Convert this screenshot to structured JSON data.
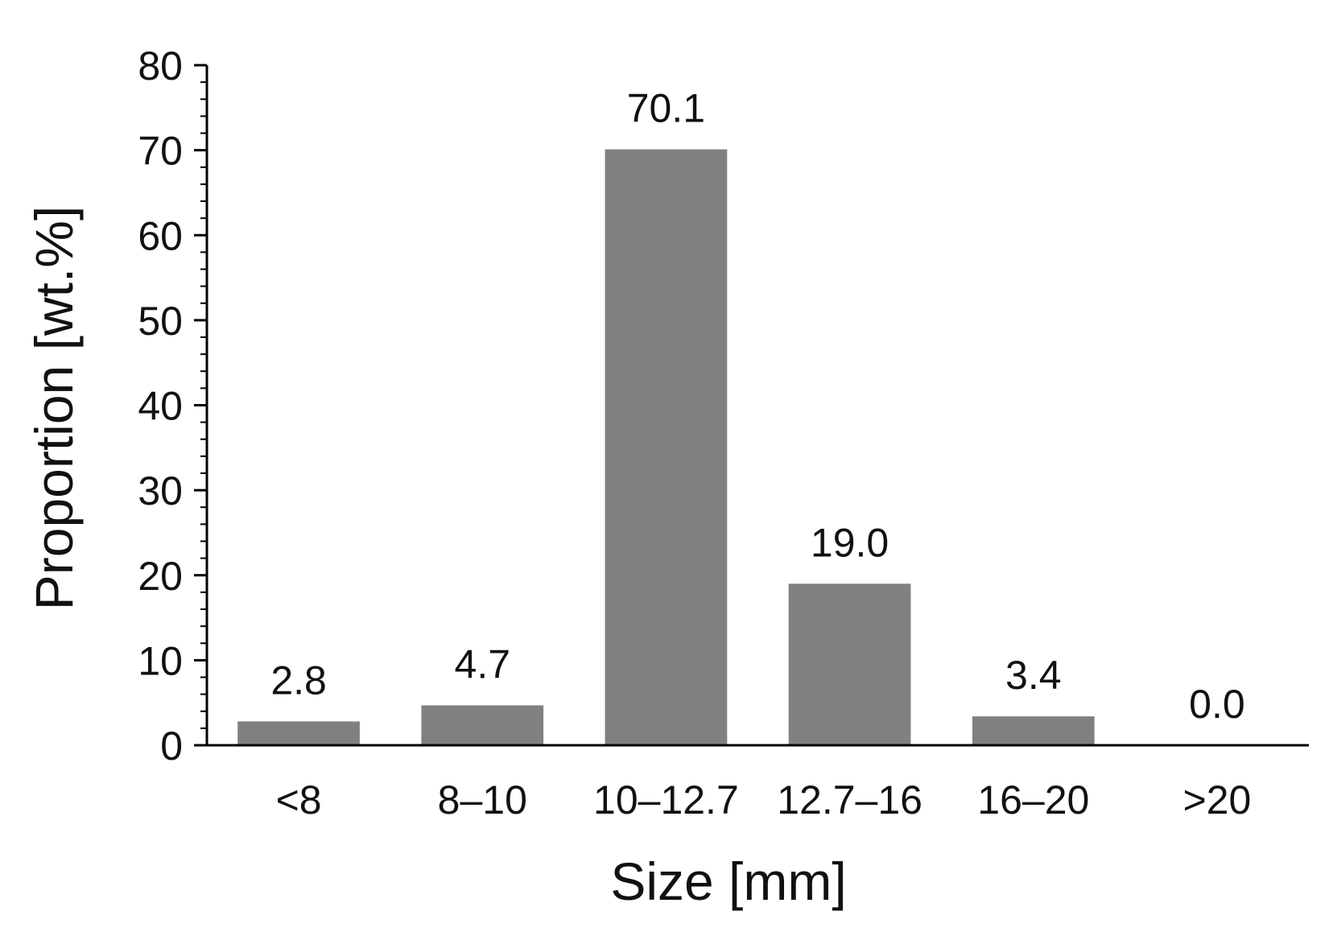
{
  "chart_data": {
    "type": "bar",
    "title": "",
    "xlabel": "Size [mm]",
    "ylabel": "Proportion [wt.%]",
    "categories": [
      "<8",
      "8–10",
      "10–12.7",
      "12.7–16",
      "16–20",
      ">20"
    ],
    "values": [
      2.8,
      4.7,
      70.1,
      19.0,
      3.4,
      0.0
    ],
    "data_labels": [
      "2.8",
      "4.7",
      "70.1",
      "19.0",
      "3.4",
      "0.0"
    ],
    "ylim": [
      0,
      80
    ],
    "yticks": [
      0,
      10,
      20,
      30,
      40,
      50,
      60,
      70,
      80
    ],
    "y_minor_step": 2,
    "grid": false,
    "legend": "none",
    "bar_color": "#808080",
    "axis_color": "#000000"
  }
}
